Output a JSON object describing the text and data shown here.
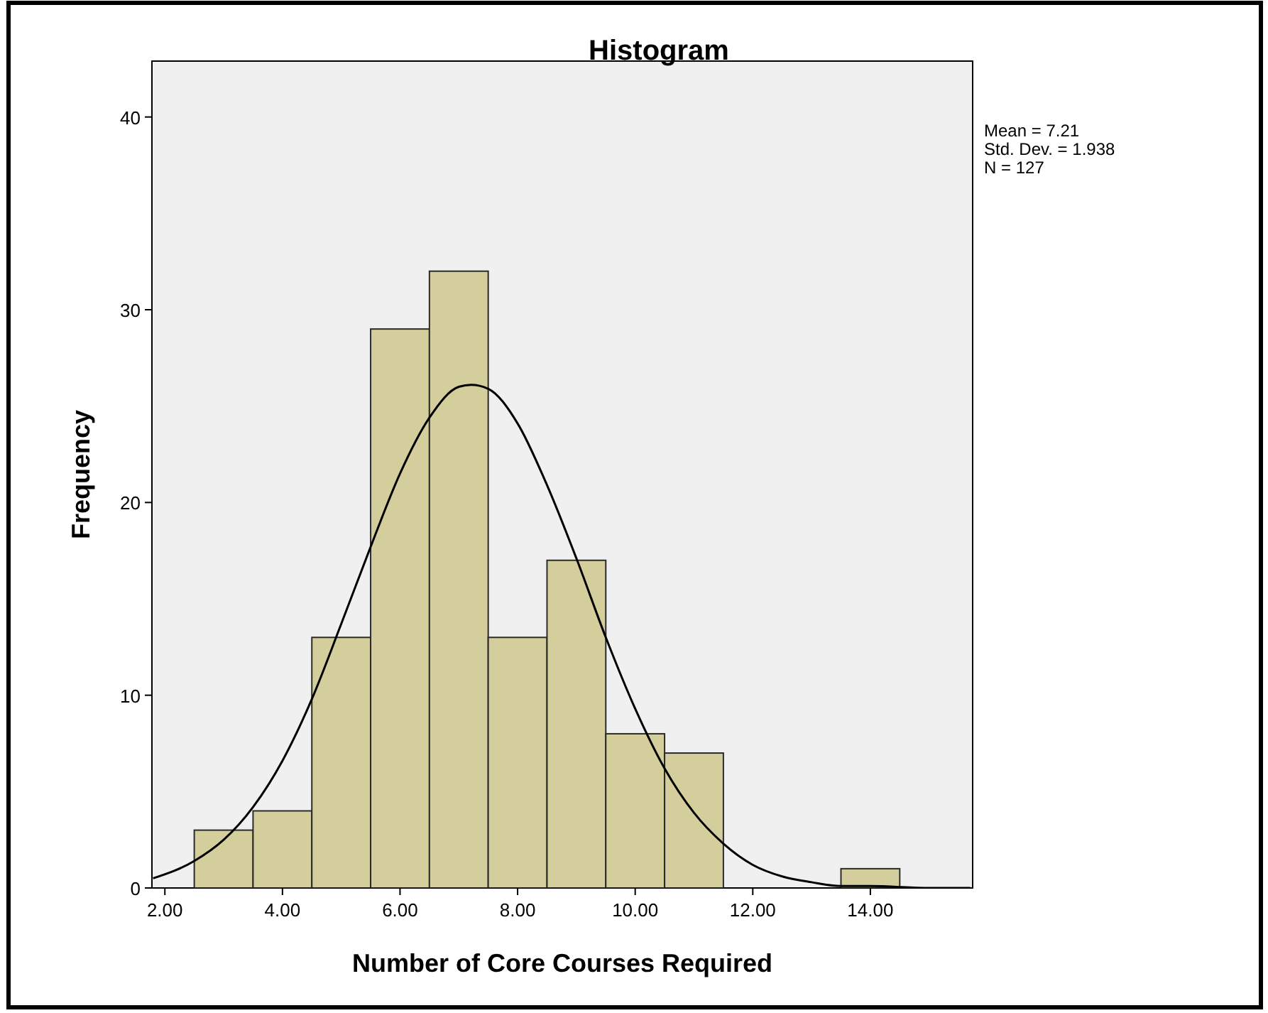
{
  "chart_data": {
    "type": "histogram",
    "title": "Histogram",
    "xlabel": "Number of Core Courses Required",
    "ylabel": "Frequency",
    "bins": [
      2.5,
      3.5,
      4.5,
      5.5,
      6.5,
      7.5,
      8.5,
      9.5,
      10.5,
      11.5,
      12.5,
      13.5,
      14.5
    ],
    "values": [
      3,
      4,
      13,
      29,
      32,
      13,
      17,
      8,
      7,
      0,
      0,
      1
    ],
    "color": "#d3ce9b",
    "series": [
      {
        "type": "line",
        "color": "#000000",
        "x": [
          1.8,
          2.5,
          3,
          3.5,
          4,
          4.5,
          5,
          5.5,
          6,
          6.5,
          7,
          7.21,
          7.5,
          8,
          8.5,
          9,
          9.5,
          10,
          10.5,
          11,
          11.5,
          12,
          12.5,
          13,
          13.5,
          14,
          15,
          15.7
        ],
        "values": [
          0.5,
          1.4,
          2.5,
          4.2,
          6.6,
          9.8,
          13.7,
          17.7,
          21.5,
          24.4,
          26,
          26.1,
          25.9,
          24.1,
          20.9,
          17.1,
          13,
          9.3,
          6.2,
          3.9,
          2.3,
          1.2,
          0.6,
          0.3,
          0.1,
          0.1,
          0,
          0
        ]
      }
    ],
    "xlim": [
      1.78,
      15.74
    ],
    "ylim": [
      0,
      42.9
    ],
    "xticks": [
      {
        "value": 2,
        "label": "2.00"
      },
      {
        "value": 4,
        "label": "4.00"
      },
      {
        "value": 6,
        "label": "6.00"
      },
      {
        "value": 8,
        "label": "8.00"
      },
      {
        "value": 10,
        "label": "10.00"
      },
      {
        "value": 12,
        "label": "12.00"
      },
      {
        "value": 14,
        "label": "14.00"
      }
    ],
    "yticks": [
      0,
      10,
      20,
      30,
      40
    ],
    "annotations": [
      "Mean = 7.21",
      "Std. Dev. = 1.938",
      "N = 127"
    ]
  }
}
